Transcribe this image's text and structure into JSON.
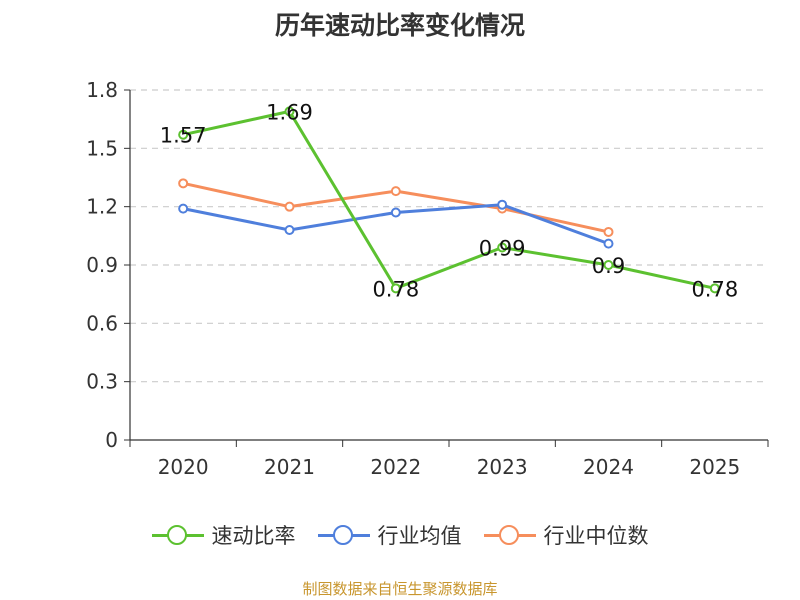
{
  "chart_data": {
    "type": "line",
    "title": "历年速动比率变化情况",
    "categories": [
      "2020",
      "2021",
      "2022",
      "2023",
      "2024",
      "2025"
    ],
    "ylim": [
      0,
      1.8
    ],
    "yticks": [
      "0",
      "0.3",
      "0.6",
      "0.9",
      "1.2",
      "1.5",
      "1.8"
    ],
    "grid": true,
    "legend_position": "bottom",
    "series": [
      {
        "name": "速动比率",
        "color": "#5cc130",
        "values": [
          1.57,
          1.69,
          0.78,
          0.99,
          0.9,
          0.78
        ],
        "labels": [
          "1.57",
          "1.69",
          "0.78",
          "0.99",
          "0.9",
          "0.78"
        ]
      },
      {
        "name": "行业均值",
        "color": "#4f7fdc",
        "values": [
          1.19,
          1.08,
          1.17,
          1.21,
          1.01,
          null
        ]
      },
      {
        "name": "行业中位数",
        "color": "#f68e5c",
        "values": [
          1.32,
          1.2,
          1.28,
          1.19,
          1.07,
          null
        ]
      }
    ]
  },
  "source": "制图数据来自恒生聚源数据库"
}
